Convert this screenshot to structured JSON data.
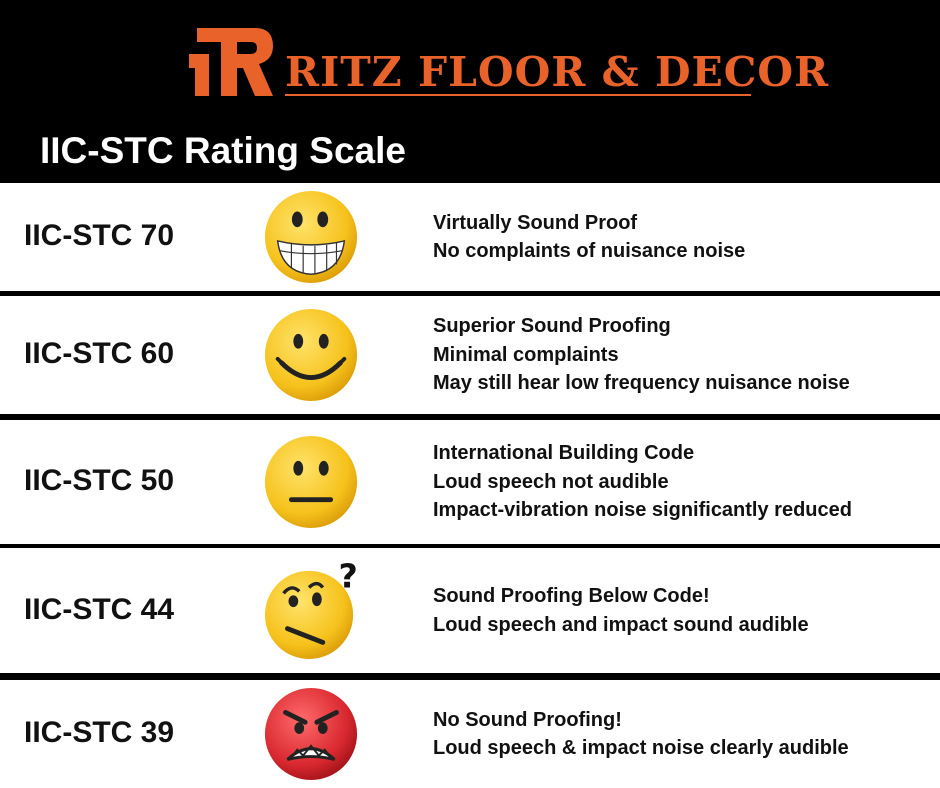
{
  "brand": {
    "name": "RITZ FLOOR & DECOR",
    "color": "#e8622a"
  },
  "title": "IIC-STC Rating Scale",
  "ratings": [
    {
      "label": "IIC-STC 70",
      "face": "grinning-face-icon",
      "lines": [
        "Virtually Sound Proof",
        "No complaints of nuisance noise"
      ]
    },
    {
      "label": "IIC-STC 60",
      "face": "smiling-face-icon",
      "lines": [
        "Superior Sound Proofing",
        "Minimal complaints",
        "May still hear low frequency nuisance noise"
      ]
    },
    {
      "label": "IIC-STC 50",
      "face": "neutral-face-icon",
      "lines": [
        "International Building Code",
        "Loud speech not audible",
        "Impact-vibration noise significantly reduced"
      ]
    },
    {
      "label": "IIC-STC 44",
      "face": "confused-face-icon",
      "lines": [
        "Sound Proofing Below Code!",
        "Loud speech and impact sound audible"
      ]
    },
    {
      "label": "IIC-STC 39",
      "face": "angry-face-icon",
      "lines": [
        "No Sound Proofing!",
        "Loud speech & impact noise clearly audible"
      ]
    }
  ],
  "colors": {
    "background": "#000000",
    "row": "#ffffff",
    "face_yellow": "#f6c21c",
    "face_red": "#d9282f"
  }
}
